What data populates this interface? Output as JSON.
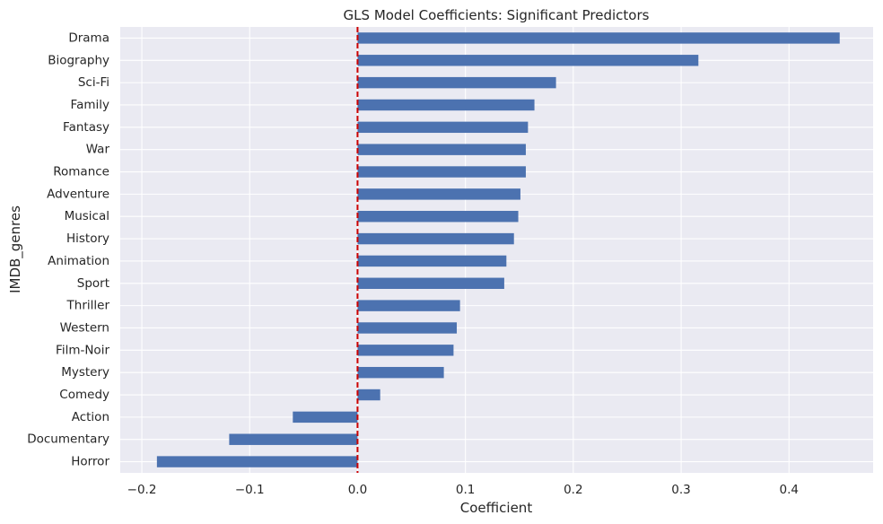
{
  "chart_data": {
    "type": "bar",
    "orientation": "horizontal",
    "title": "GLS Model Coefficients: Significant Predictors",
    "xlabel": "Coefficient",
    "ylabel": "IMDB_genres",
    "categories": [
      "Drama",
      "Biography",
      "Sci-Fi",
      "Family",
      "Fantasy",
      "War",
      "Romance",
      "Adventure",
      "Musical",
      "History",
      "Animation",
      "Sport",
      "Thriller",
      "Western",
      "Film-Noir",
      "Mystery",
      "Comedy",
      "Action",
      "Documentary",
      "Horror"
    ],
    "values": [
      0.447,
      0.316,
      0.184,
      0.164,
      0.158,
      0.156,
      0.156,
      0.151,
      0.149,
      0.145,
      0.138,
      0.136,
      0.095,
      0.092,
      0.089,
      0.08,
      0.021,
      -0.06,
      -0.119,
      -0.186
    ],
    "xlim": [
      -0.22,
      0.478
    ],
    "xticks": [
      -0.2,
      -0.1,
      0.0,
      0.1,
      0.2,
      0.3,
      0.4
    ],
    "xtick_labels": [
      "−0.2",
      "−0.1",
      "0.0",
      "0.1",
      "0.2",
      "0.3",
      "0.4"
    ],
    "reference_line": {
      "x": 0.0,
      "style": "dashed"
    },
    "grid": true,
    "colors": {
      "bar": "#4c72b0",
      "reference_line": "#cc0000",
      "plot_background": "#eaeaf2",
      "grid": "#ffffff"
    }
  }
}
